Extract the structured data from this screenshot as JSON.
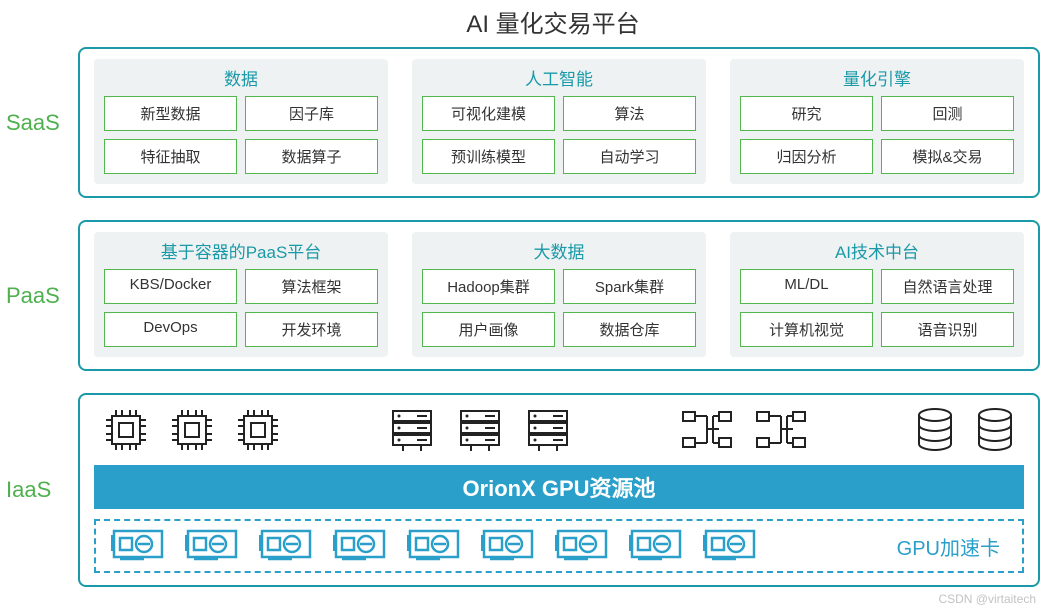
{
  "title": "AI 量化交易平台",
  "colors": {
    "layer_border": "#1a9aa8",
    "layer_label": "#4fb04f",
    "group_bg": "#eef2f2",
    "group_title": "#1a9aa8",
    "cell_border": "#52b84e",
    "cell_text": "#333333",
    "orion_bg": "#2a9fc9",
    "orion_text": "#ffffff",
    "gpu_dash": "#2a9fc9",
    "icon_stroke": "#222222"
  },
  "fontsizes": {
    "title": 24,
    "layer_label": 22,
    "group_title": 17,
    "cell": 15,
    "orion": 22,
    "gpu_label": 20
  },
  "layers": {
    "saas": {
      "label": "SaaS",
      "groups": [
        {
          "title": "数据",
          "cells": [
            "新型数据",
            "因子库",
            "特征抽取",
            "数据算子"
          ]
        },
        {
          "title": "人工智能",
          "cells": [
            "可视化建模",
            "算法",
            "预训练模型",
            "自动学习"
          ]
        },
        {
          "title": "量化引擎",
          "cells": [
            "研究",
            "回测",
            "归因分析",
            "模拟&交易"
          ]
        }
      ]
    },
    "paas": {
      "label": "PaaS",
      "groups": [
        {
          "title": "基于容器的PaaS平台",
          "cells": [
            "KBS/Docker",
            "算法框架",
            "DevOps",
            "开发环境"
          ]
        },
        {
          "title": "大数据",
          "cells": [
            "Hadoop集群",
            "Spark集群",
            "用户画像",
            "数据仓库"
          ]
        },
        {
          "title": "AI技术中台",
          "cells": [
            "ML/DL",
            "自然语言处理",
            "计算机视觉",
            "语音识别"
          ]
        }
      ]
    },
    "iaas": {
      "label": "IaaS",
      "icons": {
        "cpu_count": 3,
        "server_count": 3,
        "network_count": 2,
        "db_count": 2
      },
      "orion_label": "OrionX GPU资源池",
      "gpu_card_count": 9,
      "gpu_label": "GPU加速卡"
    }
  },
  "watermark": "CSDN @virtaitech"
}
